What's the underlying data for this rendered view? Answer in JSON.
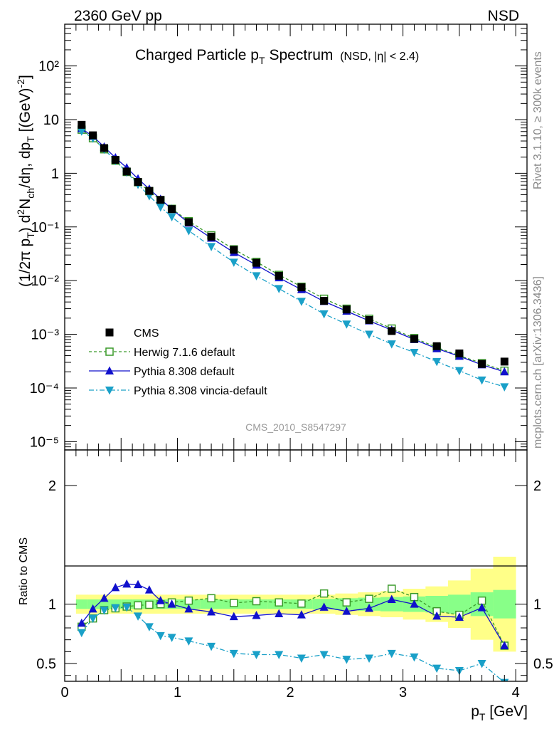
{
  "header": {
    "energy": "2360 GeV pp",
    "process": "NSD"
  },
  "side": {
    "rivet": "Rivet 3.1.10, ≥ 300k events",
    "source": "mcplots.cern.ch [arXiv:1306.3436]"
  },
  "chart_data": [
    {
      "panel": "main",
      "type": "scatter",
      "title": "Charged Particle p",
      "title_sub": "T",
      "title_rest": "Spectrum",
      "title_note": "(NSD, |η| < 2.4)",
      "watermark": "CMS_2010_S8547297",
      "ylabel": "(1/2π p_T) d²N_ch/dη, dp_T [(GeV)⁻²]",
      "yscale": "log",
      "ylim": [
        7e-06,
        600
      ],
      "xlim": [
        0,
        4.1
      ],
      "ytick_labels": [
        "10⁻⁵",
        "10⁻⁴",
        "10⁻³",
        "10⁻²",
        "10⁻¹",
        "1",
        "10",
        "10²"
      ],
      "legend_position": "lower-left",
      "x": [
        0.15,
        0.25,
        0.35,
        0.45,
        0.55,
        0.65,
        0.75,
        0.85,
        0.95,
        1.1,
        1.3,
        1.5,
        1.7,
        1.9,
        2.1,
        2.3,
        2.5,
        2.7,
        2.9,
        3.1,
        3.3,
        3.5,
        3.7,
        3.9
      ],
      "series": [
        {
          "name": "CMS",
          "color": "#000000",
          "marker": "filled-square",
          "line": "none",
          "values": [
            8.0,
            5.1,
            2.95,
            1.78,
            1.08,
            0.69,
            0.47,
            0.32,
            0.215,
            0.123,
            0.066,
            0.0375,
            0.0215,
            0.0123,
            0.0075,
            0.0042,
            0.0029,
            0.00185,
            0.00115,
            0.00082,
            0.0006,
            0.00044,
            0.00028,
            0.00031
          ]
        },
        {
          "name": "Herwig 7.1.6 default",
          "color": "#3a9a2a",
          "marker": "open-square",
          "line": "dashed",
          "values": [
            6.5,
            4.5,
            2.8,
            1.72,
            1.06,
            0.68,
            0.465,
            0.315,
            0.218,
            0.128,
            0.07,
            0.0383,
            0.0224,
            0.0128,
            0.0077,
            0.0046,
            0.003,
            0.00195,
            0.00128,
            0.00085,
            0.00057,
            0.0004,
            0.00029,
            0.00021
          ]
        },
        {
          "name": "Pythia 8.308 default",
          "color": "#1010cc",
          "marker": "filled-triangle-up",
          "line": "solid",
          "values": [
            6.8,
            4.9,
            3.1,
            1.95,
            1.27,
            0.79,
            0.51,
            0.33,
            0.215,
            0.118,
            0.062,
            0.0335,
            0.0195,
            0.0113,
            0.0068,
            0.0041,
            0.0027,
            0.00178,
            0.0012,
            0.0008,
            0.00054,
            0.00039,
            0.00027,
            0.0002
          ]
        },
        {
          "name": "Pythia 8.308 vincia-default",
          "color": "#1aa0c8",
          "marker": "filled-triangle-down",
          "line": "dashdot",
          "values": [
            6.1,
            4.5,
            2.8,
            1.72,
            1.05,
            0.62,
            0.38,
            0.235,
            0.155,
            0.085,
            0.043,
            0.022,
            0.0123,
            0.0071,
            0.0041,
            0.0024,
            0.00155,
            0.001,
            0.00066,
            0.00046,
            0.00031,
            0.00021,
            0.00014,
            0.000105
          ]
        }
      ]
    },
    {
      "panel": "ratio",
      "type": "line",
      "ylabel": "Ratio to CMS",
      "xlabel": "p_T [GeV]",
      "ylim": [
        0.35,
        2.3
      ],
      "xlim": [
        0,
        4.1
      ],
      "yticks": [
        0.5,
        1,
        2
      ],
      "ytick_labels": [
        "0.5",
        "1",
        "2"
      ],
      "xticks": [
        0,
        1,
        2,
        3,
        4
      ],
      "xtick_labels": [
        "0",
        "1",
        "2",
        "3",
        "4"
      ],
      "band_edges": [
        0.1,
        0.2,
        0.3,
        0.4,
        0.5,
        0.6,
        0.7,
        0.8,
        0.9,
        1.0,
        1.2,
        1.4,
        1.6,
        1.8,
        2.0,
        2.2,
        2.4,
        2.6,
        2.8,
        3.0,
        3.2,
        3.4,
        3.6,
        3.8,
        4.0
      ],
      "band_stat": [
        0.04,
        0.04,
        0.04,
        0.04,
        0.04,
        0.04,
        0.04,
        0.04,
        0.04,
        0.04,
        0.04,
        0.04,
        0.04,
        0.04,
        0.04,
        0.045,
        0.05,
        0.055,
        0.06,
        0.065,
        0.07,
        0.08,
        0.1,
        0.12
      ],
      "band_total": [
        0.08,
        0.08,
        0.08,
        0.08,
        0.08,
        0.08,
        0.08,
        0.08,
        0.08,
        0.08,
        0.08,
        0.08,
        0.08,
        0.08,
        0.08,
        0.08,
        0.09,
        0.1,
        0.11,
        0.13,
        0.15,
        0.2,
        0.3,
        0.4
      ],
      "x": [
        0.15,
        0.25,
        0.35,
        0.45,
        0.55,
        0.65,
        0.75,
        0.85,
        0.95,
        1.1,
        1.3,
        1.5,
        1.7,
        1.9,
        2.1,
        2.3,
        2.5,
        2.7,
        2.9,
        3.1,
        3.3,
        3.5,
        3.7,
        3.9
      ],
      "series": [
        {
          "name": "Herwig 7.1.6 default",
          "color": "#3a9a2a",
          "marker": "open-square",
          "line": "dashed",
          "values": [
            0.81,
            0.88,
            0.95,
            0.965,
            0.98,
            0.99,
            0.995,
            1.0,
            1.015,
            1.03,
            1.05,
            1.01,
            1.025,
            1.015,
            1.005,
            1.09,
            1.015,
            1.045,
            1.13,
            1.06,
            0.94,
            0.91,
            1.03,
            0.65
          ]
        },
        {
          "name": "Pythia 8.308 default",
          "color": "#1010cc",
          "marker": "filled-triangle-up",
          "line": "solid",
          "values": [
            0.84,
            0.96,
            1.05,
            1.14,
            1.17,
            1.165,
            1.12,
            1.03,
            1.0,
            0.96,
            0.935,
            0.895,
            0.905,
            0.92,
            0.91,
            0.975,
            0.94,
            0.965,
            1.04,
            1.0,
            0.9,
            0.89,
            0.97,
            0.65
          ]
        },
        {
          "name": "Pythia 8.308 vincia-default",
          "color": "#1aa0c8",
          "marker": "filled-triangle-down",
          "line": "dashdot",
          "values": [
            0.76,
            0.88,
            0.95,
            0.97,
            0.975,
            0.9,
            0.81,
            0.735,
            0.72,
            0.69,
            0.645,
            0.585,
            0.575,
            0.575,
            0.545,
            0.575,
            0.535,
            0.545,
            0.585,
            0.555,
            0.46,
            0.44,
            0.5,
            0.34
          ]
        }
      ]
    }
  ]
}
